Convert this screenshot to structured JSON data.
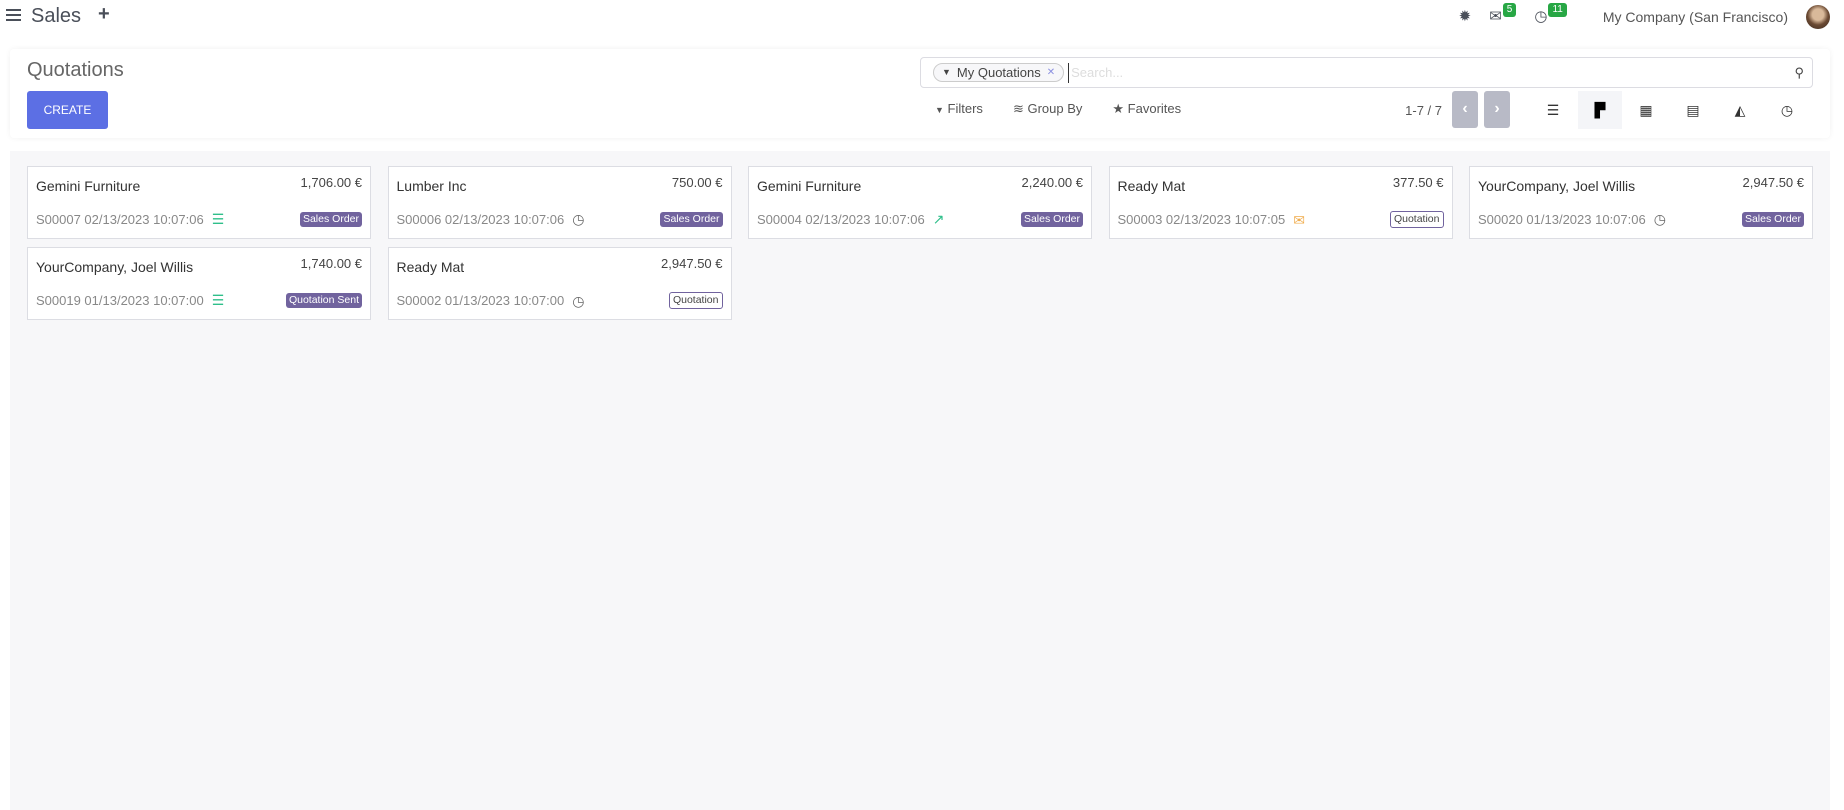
{
  "topbar": {
    "app_name": "Sales",
    "messages_count": "5",
    "activities_count": "11",
    "company": "My Company (San Francisco)"
  },
  "control_panel": {
    "title": "Quotations",
    "create_label": "CREATE",
    "search": {
      "facet_label": "My Quotations",
      "placeholder": "Search..."
    },
    "filters_label": "Filters",
    "group_by_label": "Group By",
    "favorites_label": "Favorites",
    "pager": "1-7 / 7",
    "views": [
      "list",
      "kanban",
      "calendar",
      "pivot",
      "graph",
      "activity"
    ],
    "active_view": "kanban"
  },
  "colors": {
    "primary": "#5c6fe4",
    "badge": "#71639e",
    "activity_green": "#2fbf8a",
    "activity_orange": "#f0ad4e"
  },
  "cards": [
    {
      "name": "Gemini Furniture",
      "amount": "1,706.00 €",
      "ref": "S00007 02/13/2023 10:07:06",
      "activity_icon": "tasks-icon",
      "status": "Sales Order",
      "style": "fill"
    },
    {
      "name": "Lumber Inc",
      "amount": "750.00 €",
      "ref": "S00006 02/13/2023 10:07:06",
      "activity_icon": "clock-icon",
      "status": "Sales Order",
      "style": "fill"
    },
    {
      "name": "Gemini Furniture",
      "amount": "2,240.00 €",
      "ref": "S00004 02/13/2023 10:07:06",
      "activity_icon": "chart-line-icon",
      "status": "Sales Order",
      "style": "fill"
    },
    {
      "name": "Ready Mat",
      "amount": "377.50 €",
      "ref": "S00003 02/13/2023 10:07:05",
      "activity_icon": "envelope-icon",
      "status": "Quotation",
      "style": "outline"
    },
    {
      "name": "YourCompany, Joel Willis",
      "amount": "2,947.50 €",
      "ref": "S00020 01/13/2023 10:07:06",
      "activity_icon": "clock-icon",
      "status": "Sales Order",
      "style": "fill"
    },
    {
      "name": "YourCompany, Joel Willis",
      "amount": "1,740.00 €",
      "ref": "S00019 01/13/2023 10:07:00",
      "activity_icon": "tasks-icon",
      "status": "Quotation Sent",
      "style": "fill"
    },
    {
      "name": "Ready Mat",
      "amount": "2,947.50 €",
      "ref": "S00002 01/13/2023 10:07:00",
      "activity_icon": "clock-icon",
      "status": "Quotation",
      "style": "outline"
    }
  ]
}
